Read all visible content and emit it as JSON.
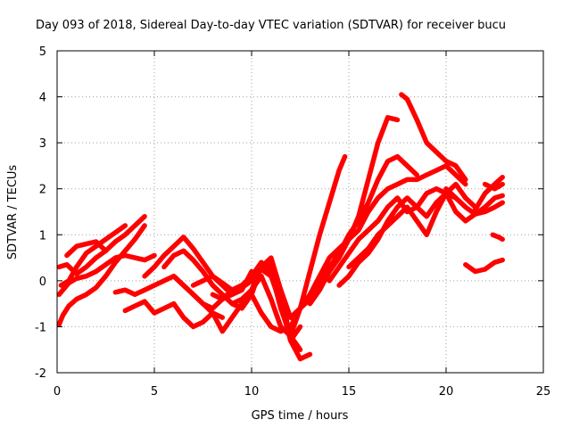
{
  "chart_data": {
    "type": "line",
    "title": "Day 093 of 2018, Sidereal Day-to-day VTEC variation (SDTVAR) for receiver bucu",
    "xlabel": "GPS time / hours",
    "ylabel": "SDTVAR / TECUs",
    "xlim": [
      0,
      25
    ],
    "ylim": [
      -2,
      5
    ],
    "xticks": [
      0,
      5,
      10,
      15,
      20,
      25
    ],
    "yticks": [
      -2,
      -1,
      0,
      1,
      2,
      3,
      4,
      5
    ],
    "grid": true,
    "color": "#ff0000",
    "series": [
      {
        "x": [
          0.1,
          0.3,
          0.6,
          1.0,
          1.5,
          2.0,
          2.5,
          3.0,
          3.5,
          4.0,
          4.5,
          5.0
        ],
        "y": [
          -0.3,
          -0.2,
          -0.05,
          0.05,
          0.1,
          0.2,
          0.35,
          0.5,
          0.55,
          0.5,
          0.45,
          0.55
        ]
      },
      {
        "x": [
          0.1,
          0.3,
          0.6,
          1.0,
          1.5,
          2.0,
          2.5,
          3.0,
          3.5,
          4.0,
          4.5
        ],
        "y": [
          -0.95,
          -0.75,
          -0.55,
          -0.4,
          -0.3,
          -0.15,
          0.1,
          0.4,
          0.65,
          0.9,
          1.2
        ]
      },
      {
        "x": [
          0.1,
          0.5,
          1.0,
          1.5,
          2.0,
          2.5,
          3.0,
          3.5,
          4.0,
          4.5
        ],
        "y": [
          0.3,
          0.35,
          0.15,
          0.3,
          0.5,
          0.65,
          0.85,
          1.0,
          1.2,
          1.4
        ]
      },
      {
        "x": [
          0.2,
          0.6,
          1.0,
          1.5,
          2.0,
          2.5,
          3.0,
          3.5
        ],
        "y": [
          -0.1,
          0.0,
          0.3,
          0.6,
          0.75,
          0.9,
          1.05,
          1.2
        ]
      },
      {
        "x": [
          0.5,
          1.0,
          1.5,
          2.0,
          2.5
        ],
        "y": [
          0.55,
          0.75,
          0.8,
          0.85,
          0.65
        ]
      },
      {
        "x": [
          3.5,
          4.0,
          4.5,
          5.0,
          5.5,
          6.0,
          6.5,
          7.0,
          7.5,
          8.0,
          8.5
        ],
        "y": [
          -0.65,
          -0.55,
          -0.45,
          -0.7,
          -0.6,
          -0.5,
          -0.8,
          -1.0,
          -0.9,
          -0.7,
          -0.8
        ]
      },
      {
        "x": [
          3.0,
          3.5,
          4.0,
          4.5,
          5.0,
          5.5,
          6.0,
          6.5,
          7.0,
          7.5,
          8.0,
          8.5,
          9.0,
          9.5,
          10.0,
          10.5
        ],
        "y": [
          -0.25,
          -0.2,
          -0.3,
          -0.2,
          -0.1,
          0.0,
          0.1,
          -0.1,
          -0.3,
          -0.5,
          -0.6,
          -0.4,
          -0.2,
          -0.1,
          0.0,
          0.1
        ]
      },
      {
        "x": [
          4.5,
          5.0,
          5.5,
          6.0,
          6.5,
          7.0,
          7.5,
          8.0,
          8.5,
          9.0,
          9.5,
          10.0
        ],
        "y": [
          0.1,
          0.3,
          0.55,
          0.75,
          0.95,
          0.7,
          0.4,
          0.1,
          -0.1,
          -0.3,
          -0.2,
          0.2
        ]
      },
      {
        "x": [
          5.5,
          6.0,
          6.5,
          7.0,
          7.5,
          8.0,
          8.5,
          9.0,
          9.5,
          10.0,
          10.5,
          11.0,
          11.5,
          12.0
        ],
        "y": [
          0.3,
          0.55,
          0.65,
          0.45,
          0.2,
          -0.1,
          -0.3,
          -0.5,
          -0.6,
          -0.3,
          0.3,
          0.35,
          -0.2,
          -0.8
        ]
      },
      {
        "x": [
          6.0,
          6.5,
          7.0,
          7.5,
          8.0,
          8.5,
          9.0,
          9.5,
          10.0,
          10.5,
          11.0,
          11.5,
          12.0,
          12.5
        ],
        "y": [
          0.1,
          -0.1,
          -0.3,
          -0.5,
          -0.7,
          -1.1,
          -0.8,
          -0.5,
          -0.2,
          0.3,
          0.5,
          -0.2,
          -1.3,
          -1.0
        ]
      },
      {
        "x": [
          7.0,
          7.5,
          8.0,
          8.5,
          9.0,
          9.5,
          10.0,
          10.5,
          11.0,
          11.5,
          12.0,
          12.5
        ],
        "y": [
          -0.1,
          0.0,
          0.1,
          -0.05,
          -0.2,
          -0.1,
          0.1,
          0.4,
          0.2,
          -0.6,
          -1.2,
          -1.5
        ]
      },
      {
        "x": [
          8.0,
          8.5,
          9.0,
          9.5,
          10.0,
          10.5,
          11.0,
          11.5,
          12.0,
          12.5,
          13.0
        ],
        "y": [
          -0.3,
          -0.4,
          -0.3,
          -0.15,
          0.0,
          0.25,
          0.1,
          -0.5,
          -1.3,
          -1.7,
          -1.6
        ]
      },
      {
        "x": [
          9.0,
          9.5,
          10.0,
          10.5,
          11.0,
          11.5,
          12.0,
          12.5,
          13.0,
          13.5,
          14.0,
          14.5,
          14.8
        ],
        "y": [
          -0.5,
          -0.4,
          -0.2,
          0.1,
          -0.4,
          -1.0,
          -1.2,
          -0.6,
          0.2,
          1.0,
          1.7,
          2.4,
          2.7
        ]
      },
      {
        "x": [
          10.0,
          10.5,
          11.0,
          11.5,
          12.0,
          12.5,
          13.0,
          13.5,
          14.0,
          14.5,
          15.0,
          15.5,
          16.0,
          16.5,
          17.0,
          17.5
        ],
        "y": [
          -0.3,
          -0.7,
          -1.0,
          -1.1,
          -1.0,
          -0.6,
          -0.3,
          0.1,
          0.5,
          0.7,
          0.9,
          1.4,
          2.2,
          3.0,
          3.55,
          3.5
        ]
      },
      {
        "x": [
          12.0,
          12.5,
          13.0,
          13.5,
          14.0,
          14.5,
          15.0,
          15.5,
          16.0,
          16.5,
          17.0,
          17.5,
          18.0,
          18.5
        ],
        "y": [
          -0.8,
          -0.6,
          -0.4,
          -0.1,
          0.3,
          0.6,
          1.0,
          1.3,
          1.7,
          2.2,
          2.6,
          2.7,
          2.5,
          2.3
        ]
      },
      {
        "x": [
          13.0,
          13.5,
          14.0,
          14.5,
          15.0,
          15.5,
          16.0,
          16.5,
          17.0,
          17.5,
          18.0,
          18.5,
          19.0,
          19.5,
          20.0,
          20.5,
          21.0
        ],
        "y": [
          -0.5,
          -0.2,
          0.2,
          0.5,
          0.9,
          1.1,
          1.5,
          1.8,
          2.0,
          2.1,
          2.2,
          2.2,
          2.3,
          2.4,
          2.5,
          2.3,
          2.1
        ]
      },
      {
        "x": [
          14.0,
          14.5,
          15.0,
          15.5,
          16.0,
          16.5,
          17.0,
          17.5,
          18.0,
          18.5,
          19.0,
          19.5,
          20.0,
          20.5,
          21.0
        ],
        "y": [
          0.0,
          0.3,
          0.6,
          0.9,
          1.1,
          1.3,
          1.6,
          1.8,
          1.5,
          1.6,
          1.9,
          2.0,
          1.9,
          1.5,
          1.3
        ]
      },
      {
        "x": [
          14.5,
          15.0,
          15.5,
          16.0,
          16.5,
          17.0,
          17.5,
          18.0,
          18.5,
          19.0,
          19.5,
          20.0,
          20.5
        ],
        "y": [
          -0.1,
          0.1,
          0.4,
          0.6,
          0.9,
          1.3,
          1.6,
          1.8,
          1.6,
          1.4,
          1.7,
          1.9,
          1.8
        ]
      },
      {
        "x": [
          15.0,
          15.5,
          16.0,
          16.5,
          17.0,
          17.5,
          18.0,
          18.5,
          19.0,
          19.5,
          20.0,
          20.5,
          21.0,
          21.5
        ],
        "y": [
          0.3,
          0.5,
          0.7,
          1.0,
          1.2,
          1.4,
          1.6,
          1.3,
          1.0,
          1.5,
          1.9,
          2.1,
          1.8,
          1.6
        ]
      },
      {
        "x": [
          17.7,
          18.0,
          18.5,
          19.0,
          19.5,
          20.0,
          20.5,
          21.0
        ],
        "y": [
          4.05,
          3.95,
          3.5,
          3.0,
          2.8,
          2.6,
          2.5,
          2.2
        ]
      },
      {
        "x": [
          20.0,
          20.5,
          21.0,
          21.5,
          22.0,
          22.5,
          22.9
        ],
        "y": [
          2.0,
          1.8,
          1.6,
          1.45,
          1.5,
          1.6,
          1.7
        ]
      },
      {
        "x": [
          21.0,
          21.5,
          22.0,
          22.5,
          22.9
        ],
        "y": [
          1.3,
          1.45,
          1.6,
          1.8,
          1.85
        ]
      },
      {
        "x": [
          21.5,
          22.0,
          22.5,
          22.9
        ],
        "y": [
          1.55,
          1.9,
          2.1,
          2.25
        ]
      },
      {
        "x": [
          21.0,
          21.5,
          22.0,
          22.5,
          22.9
        ],
        "y": [
          0.35,
          0.2,
          0.25,
          0.4,
          0.45
        ]
      },
      {
        "x": [
          22.0,
          22.5,
          22.9
        ],
        "y": [
          2.1,
          2.0,
          2.1
        ]
      },
      {
        "x": [
          22.4,
          22.7,
          22.9
        ],
        "y": [
          1.0,
          0.95,
          0.9
        ]
      }
    ]
  }
}
